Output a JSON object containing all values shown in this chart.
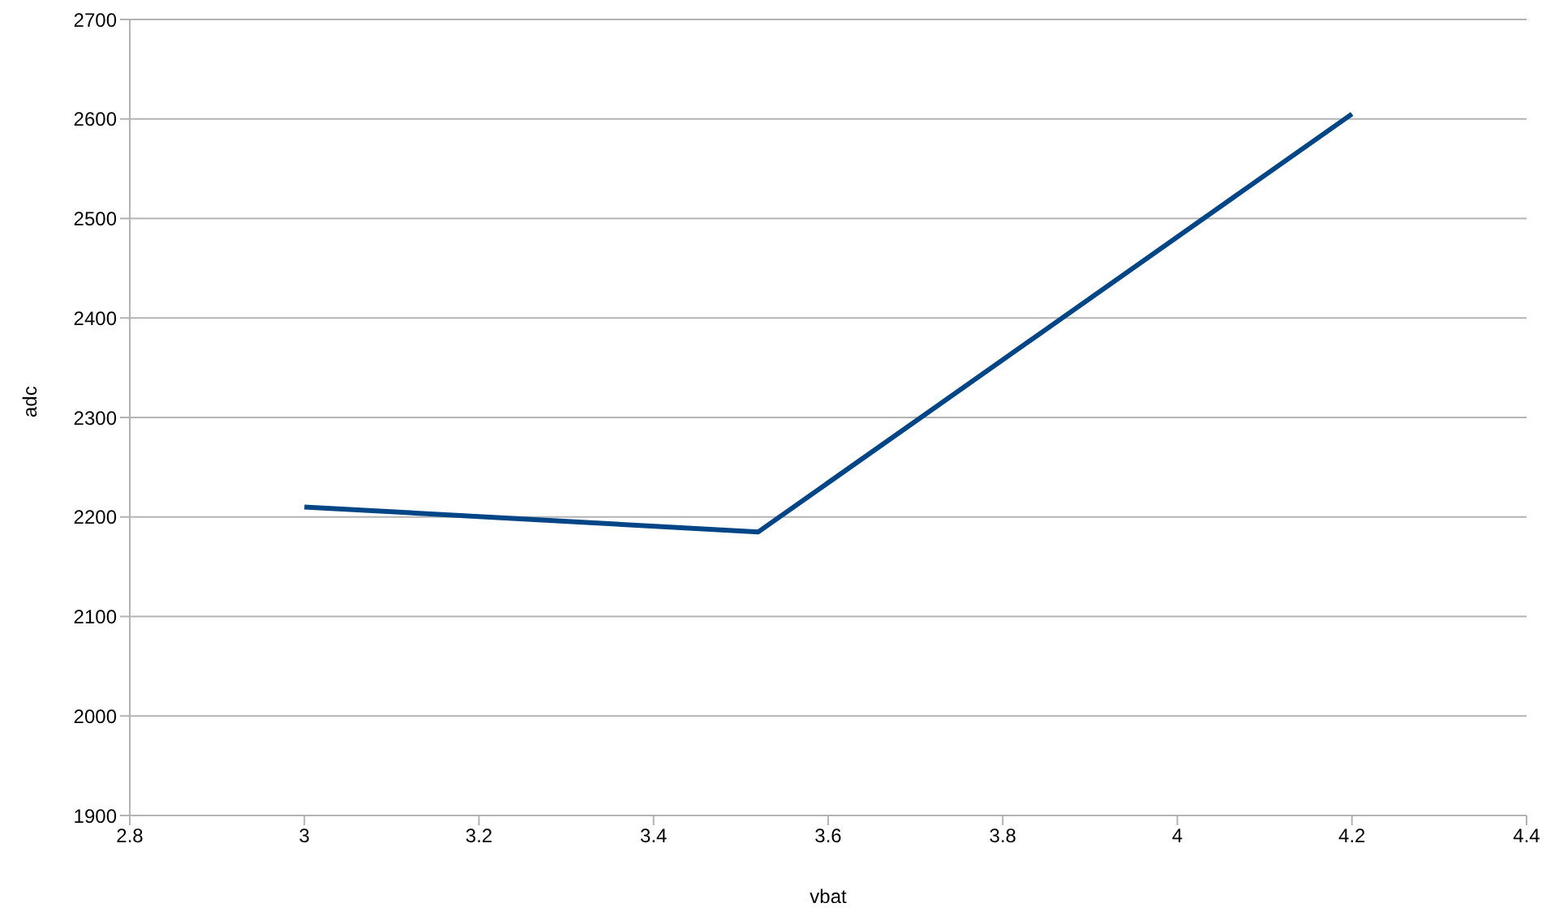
{
  "chart_data": {
    "type": "line",
    "xlabel": "vbat",
    "ylabel": "adc",
    "x": [
      3,
      3.52,
      4.2
    ],
    "series": [
      {
        "color": "#004586",
        "values": [
          2210,
          2185,
          2605
        ]
      }
    ],
    "xlim": [
      2.8,
      4.4
    ],
    "xticks": [
      2.8,
      3,
      3.2,
      3.4,
      3.6,
      3.8,
      4,
      4.2,
      4.4
    ],
    "ylim": [
      1900,
      2700
    ],
    "yticks": [
      1900,
      2000,
      2100,
      2200,
      2300,
      2400,
      2500,
      2600,
      2700
    ],
    "grid": "y",
    "legend": false,
    "marker": "none",
    "line_style": "solid"
  }
}
